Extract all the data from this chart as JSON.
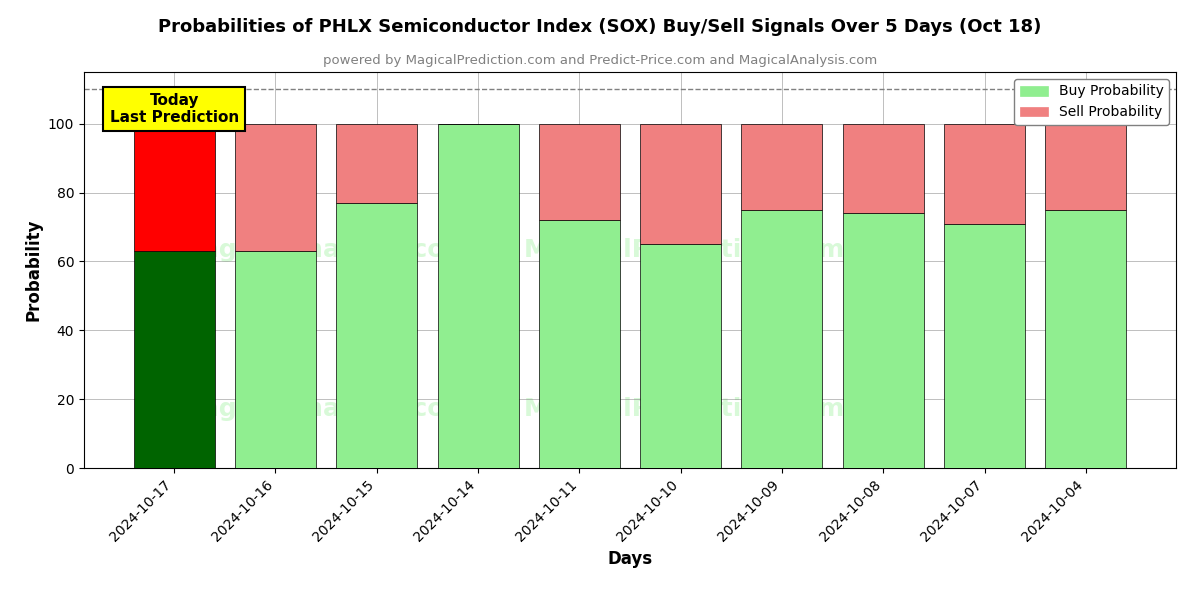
{
  "title": "Probabilities of PHLX Semiconductor Index (SOX) Buy/Sell Signals Over 5 Days (Oct 18)",
  "subtitle": "powered by MagicalPrediction.com and Predict-Price.com and MagicalAnalysis.com",
  "xlabel": "Days",
  "ylabel": "Probability",
  "dates": [
    "2024-10-17",
    "2024-10-16",
    "2024-10-15",
    "2024-10-14",
    "2024-10-11",
    "2024-10-10",
    "2024-10-09",
    "2024-10-08",
    "2024-10-07",
    "2024-10-04"
  ],
  "buy_values": [
    63,
    63,
    77,
    100,
    72,
    65,
    75,
    74,
    71,
    75
  ],
  "sell_values": [
    37,
    37,
    23,
    0,
    28,
    35,
    25,
    26,
    29,
    25
  ],
  "today_buy_color": "#006400",
  "today_sell_color": "#FF0000",
  "buy_color": "#90EE90",
  "sell_color": "#F08080",
  "today_annotation": "Today\nLast Prediction",
  "dashed_line_y": 110,
  "ylim": [
    0,
    115
  ],
  "yticks": [
    0,
    20,
    40,
    60,
    80,
    100
  ],
  "bar_width": 0.8,
  "figsize": [
    12,
    6
  ],
  "dpi": 100,
  "watermark_color": "#90EE90",
  "watermark_alpha": 0.35
}
